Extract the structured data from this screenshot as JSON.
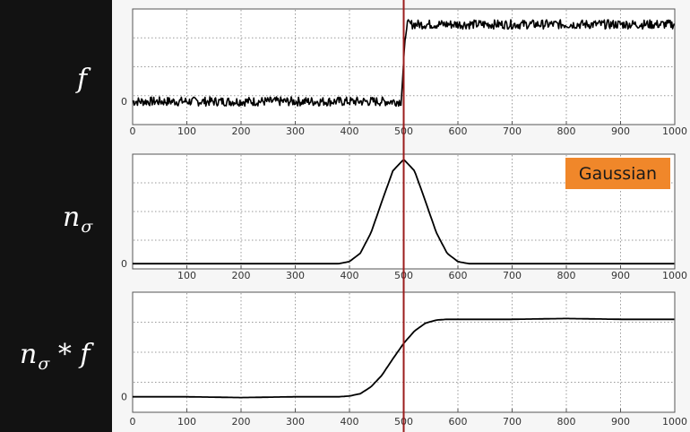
{
  "labels": {
    "row1": "f",
    "row2_main": "n",
    "row2_sub": "σ",
    "row3_main": "n",
    "row3_sub": "σ",
    "row3_tail": " * f"
  },
  "badge": {
    "text": "Gaussian",
    "color": "#f0872a"
  },
  "marker": {
    "x": 500,
    "color": "#9b1c1c"
  },
  "chart_data": [
    {
      "type": "line",
      "name": "f",
      "x_ticks": [
        0,
        100,
        200,
        300,
        400,
        500,
        600,
        700,
        800,
        900,
        1000
      ],
      "y_tick_labels": [
        "0"
      ],
      "xlim": [
        0,
        1000
      ],
      "ylim": [
        -0.3,
        1.2
      ],
      "grid": true,
      "series": [
        {
          "x": [
            0,
            250,
            450,
            495,
            500,
            505,
            550,
            750,
            1000
          ],
          "values": [
            0,
            0,
            0,
            0,
            0.5,
            1,
            1,
            1,
            1
          ],
          "noise": 0.06
        }
      ]
    },
    {
      "type": "line",
      "name": "n_sigma",
      "x_ticks": [
        100,
        200,
        300,
        400,
        500,
        600,
        700,
        800,
        900,
        1000
      ],
      "y_tick_labels": [
        "0"
      ],
      "xlim": [
        0,
        1000
      ],
      "ylim": [
        -0.05,
        1.05
      ],
      "grid": true,
      "series": [
        {
          "x": [
            0,
            380,
            400,
            420,
            440,
            460,
            480,
            500,
            520,
            540,
            560,
            580,
            600,
            620,
            1000
          ],
          "values": [
            0,
            0,
            0.02,
            0.1,
            0.3,
            0.6,
            0.89,
            1.0,
            0.89,
            0.6,
            0.3,
            0.1,
            0.02,
            0,
            0
          ]
        }
      ]
    },
    {
      "type": "line",
      "name": "n_sigma_conv_f",
      "x_ticks": [
        0,
        100,
        200,
        300,
        400,
        500,
        600,
        700,
        800,
        900,
        1000
      ],
      "y_tick_labels": [
        "0"
      ],
      "xlim": [
        0,
        1000
      ],
      "ylim": [
        -0.2,
        1.35
      ],
      "grid": true,
      "series": [
        {
          "x": [
            0,
            100,
            200,
            300,
            380,
            400,
            420,
            440,
            460,
            480,
            500,
            520,
            540,
            560,
            580,
            600,
            620,
            700,
            800,
            900,
            1000
          ],
          "values": [
            0,
            0,
            -0.01,
            0,
            0,
            0.01,
            0.04,
            0.13,
            0.28,
            0.49,
            0.69,
            0.85,
            0.95,
            0.99,
            1.0,
            1.0,
            1.0,
            1.0,
            1.01,
            1.0,
            1.0
          ]
        }
      ]
    }
  ]
}
